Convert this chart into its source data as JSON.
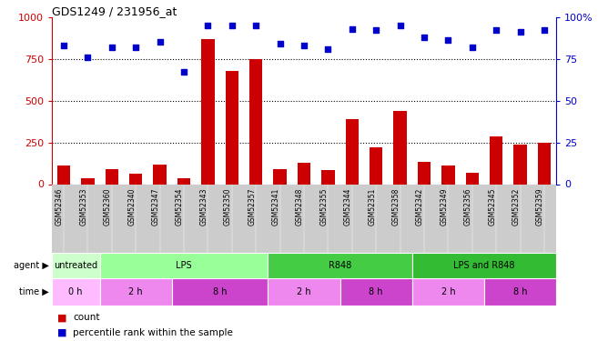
{
  "title": "GDS1249 / 231956_at",
  "samples": [
    "GSM52346",
    "GSM52353",
    "GSM52360",
    "GSM52340",
    "GSM52347",
    "GSM52354",
    "GSM52343",
    "GSM52350",
    "GSM52357",
    "GSM52341",
    "GSM52348",
    "GSM52355",
    "GSM52344",
    "GSM52351",
    "GSM52358",
    "GSM52342",
    "GSM52349",
    "GSM52356",
    "GSM52345",
    "GSM52352",
    "GSM52359"
  ],
  "counts": [
    110,
    35,
    90,
    65,
    115,
    35,
    870,
    680,
    750,
    90,
    130,
    85,
    390,
    220,
    440,
    135,
    110,
    70,
    285,
    235,
    245
  ],
  "percentiles": [
    83,
    76,
    82,
    82,
    85,
    67,
    95,
    95,
    95,
    84,
    83,
    81,
    93,
    92,
    95,
    88,
    86,
    82,
    92,
    91,
    92
  ],
  "agent_spans": [
    {
      "label": "untreated",
      "start": 0,
      "end": 2,
      "color": "#ccffcc"
    },
    {
      "label": "LPS",
      "start": 2,
      "end": 9,
      "color": "#99ff99"
    },
    {
      "label": "R848",
      "start": 9,
      "end": 15,
      "color": "#44cc44"
    },
    {
      "label": "LPS and R848",
      "start": 15,
      "end": 21,
      "color": "#33bb33"
    }
  ],
  "time_spans": [
    {
      "label": "0 h",
      "start": 0,
      "end": 2,
      "color": "#ffbbff"
    },
    {
      "label": "2 h",
      "start": 2,
      "end": 5,
      "color": "#ee88ee"
    },
    {
      "label": "8 h",
      "start": 5,
      "end": 9,
      "color": "#cc44cc"
    },
    {
      "label": "2 h",
      "start": 9,
      "end": 12,
      "color": "#ee88ee"
    },
    {
      "label": "8 h",
      "start": 12,
      "end": 15,
      "color": "#cc44cc"
    },
    {
      "label": "2 h",
      "start": 15,
      "end": 18,
      "color": "#ee88ee"
    },
    {
      "label": "8 h",
      "start": 18,
      "end": 21,
      "color": "#cc44cc"
    }
  ],
  "bar_color": "#cc0000",
  "dot_color": "#0000cc",
  "left_axis_color": "#cc0000",
  "right_axis_color": "#0000cc",
  "left_ylim": [
    0,
    1000
  ],
  "right_ylim": [
    0,
    100
  ],
  "left_yticks": [
    0,
    250,
    500,
    750,
    1000
  ],
  "right_yticks": [
    0,
    25,
    50,
    75,
    100
  ],
  "right_yticklabels": [
    "0",
    "25",
    "50",
    "75",
    "100%"
  ],
  "background_color": "#ffffff",
  "dotted_lines": [
    250,
    500,
    750
  ],
  "label_bg_color": "#cccccc",
  "legend_count_label": "count",
  "legend_pct_label": "percentile rank within the sample"
}
